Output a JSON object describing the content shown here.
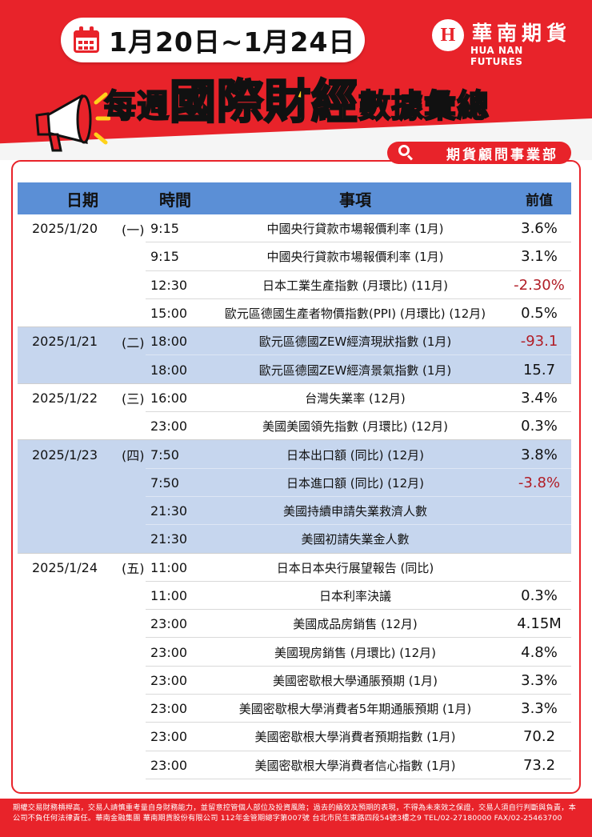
{
  "header": {
    "date_range": "1月20日~1月24日",
    "title_parts": [
      "每週",
      "國際財經",
      "數據彙總"
    ],
    "department": "期貨顧問事業部"
  },
  "brand": {
    "logo_mark": "H",
    "name_zh": "華南期貨",
    "name_en": "HUA NAN FUTURES"
  },
  "colors": {
    "brand_red": "#e8232a",
    "header_blue": "#5b8fd6",
    "shade_blue": "#c6d6ee",
    "negative": "#b11d26",
    "title_yellow": "#ffd21a"
  },
  "icons": [
    "calendar-icon",
    "megaphone-icon",
    "search-icon"
  ],
  "table": {
    "columns": [
      "日期",
      "時間",
      "事項",
      "前值"
    ],
    "rows": [
      {
        "date": "2025/1/20",
        "weekday": "(一)",
        "time": "9:15",
        "event": "中國央行貸款市場報價利率 (1月)",
        "prev": "3.6%",
        "neg": false,
        "shade": false,
        "group_end": false
      },
      {
        "date": "",
        "weekday": "",
        "time": "9:15",
        "event": "中國央行貸款市場報價利率 (1月)",
        "prev": "3.1%",
        "neg": false,
        "shade": false,
        "group_end": false
      },
      {
        "date": "",
        "weekday": "",
        "time": "12:30",
        "event": "日本工業生產指數 (月環比) (11月)",
        "prev": "-2.30%",
        "neg": true,
        "shade": false,
        "group_end": false
      },
      {
        "date": "",
        "weekday": "",
        "time": "15:00",
        "event": "歐元區德國生產者物價指數(PPI) (月環比) (12月)",
        "prev": "0.5%",
        "neg": false,
        "shade": false,
        "group_end": true
      },
      {
        "date": "2025/1/21",
        "weekday": "(二)",
        "time": "18:00",
        "event": "歐元區德國ZEW經濟現狀指數 (1月)",
        "prev": "-93.1",
        "neg": true,
        "shade": true,
        "group_end": false
      },
      {
        "date": "",
        "weekday": "",
        "time": "18:00",
        "event": "歐元區德國ZEW經濟景氣指數 (1月)",
        "prev": "15.7",
        "neg": false,
        "shade": true,
        "group_end": true
      },
      {
        "date": "2025/1/22",
        "weekday": "(三)",
        "time": "16:00",
        "event": "台灣失業率 (12月)",
        "prev": "3.4%",
        "neg": false,
        "shade": false,
        "group_end": false
      },
      {
        "date": "",
        "weekday": "",
        "time": "23:00",
        "event": "美國美國領先指數 (月環比) (12月)",
        "prev": "0.3%",
        "neg": false,
        "shade": false,
        "group_end": true
      },
      {
        "date": "2025/1/23",
        "weekday": "(四)",
        "time": "7:50",
        "event": "日本出口額 (同比) (12月)",
        "prev": "3.8%",
        "neg": false,
        "shade": true,
        "group_end": false
      },
      {
        "date": "",
        "weekday": "",
        "time": "7:50",
        "event": "日本進口額 (同比) (12月)",
        "prev": "-3.8%",
        "neg": true,
        "shade": true,
        "group_end": false
      },
      {
        "date": "",
        "weekday": "",
        "time": "21:30",
        "event": "美國持續申請失業救濟人數",
        "prev": "",
        "neg": false,
        "shade": true,
        "group_end": false
      },
      {
        "date": "",
        "weekday": "",
        "time": "21:30",
        "event": "美國初請失業金人數",
        "prev": "",
        "neg": false,
        "shade": true,
        "group_end": true
      },
      {
        "date": "2025/1/24",
        "weekday": "(五)",
        "time": "11:00",
        "event": "日本日本央行展望報告 (同比)",
        "prev": "",
        "neg": false,
        "shade": false,
        "group_end": false
      },
      {
        "date": "",
        "weekday": "",
        "time": "11:00",
        "event": "日本利率決議",
        "prev": "0.3%",
        "neg": false,
        "shade": false,
        "group_end": false
      },
      {
        "date": "",
        "weekday": "",
        "time": "23:00",
        "event": "美國成品房銷售 (12月)",
        "prev": "4.15M",
        "neg": false,
        "shade": false,
        "group_end": false
      },
      {
        "date": "",
        "weekday": "",
        "time": "23:00",
        "event": "美國現房銷售 (月環比) (12月)",
        "prev": "4.8%",
        "neg": false,
        "shade": false,
        "group_end": false
      },
      {
        "date": "",
        "weekday": "",
        "time": "23:00",
        "event": "美國密歇根大學通脹預期 (1月)",
        "prev": "3.3%",
        "neg": false,
        "shade": false,
        "group_end": false
      },
      {
        "date": "",
        "weekday": "",
        "time": "23:00",
        "event": "美國密歇根大學消費者5年期通脹預期 (1月)",
        "prev": "3.3%",
        "neg": false,
        "shade": false,
        "group_end": false
      },
      {
        "date": "",
        "weekday": "",
        "time": "23:00",
        "event": "美國密歇根大學消費者預期指數 (1月)",
        "prev": "70.2",
        "neg": false,
        "shade": false,
        "group_end": false
      },
      {
        "date": "",
        "weekday": "",
        "time": "23:00",
        "event": "美國密歇根大學消費者信心指數 (1月)",
        "prev": "73.2",
        "neg": false,
        "shade": false,
        "group_end": false
      }
    ]
  },
  "footer": {
    "disclaimer": "期權交易財務槓桿高，交易人請慎重考量自身財務能力，並留意控管個人部位及投資風險；過去的績效及預期的表現，不得為未來效之保證，交易人須自行判斷與負責，本公司不負任何法律責任。華南金融集團 華南期貨股份有限公司 112年金管期總字第007號 台北市民生東路四段54號3樓之9 TEL/02-27180000 FAX/02-25463700"
  }
}
